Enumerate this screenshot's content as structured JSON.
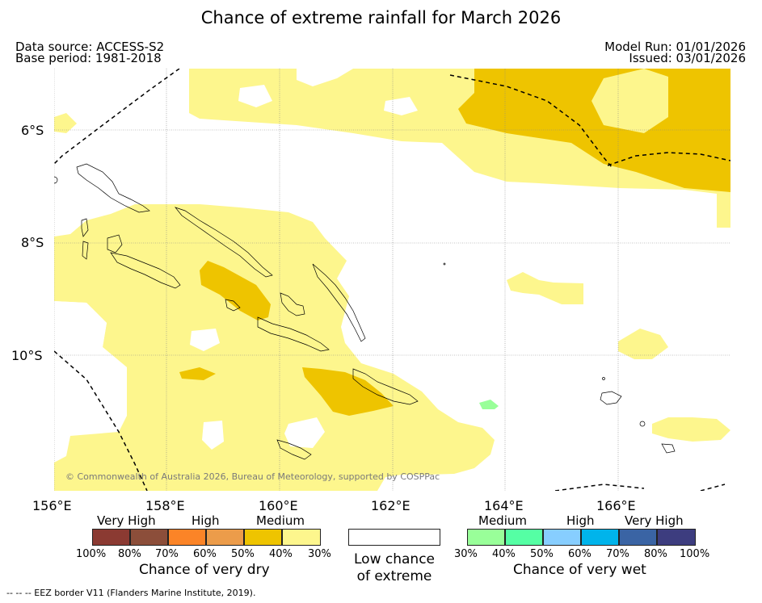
{
  "title": "Chance of extreme rainfall for March 2026",
  "header": {
    "data_source": "Data source: ACCESS-S2",
    "base_period": "Base period: 1981-2018",
    "model_run": "Model Run: 01/01/2026",
    "issued": "Issued: 03/01/2026"
  },
  "map": {
    "lat_labels": [
      "6°S",
      "8°S",
      "10°S"
    ],
    "lon_labels": [
      "156°E",
      "158°E",
      "160°E",
      "162°E",
      "164°E",
      "166°E"
    ],
    "copyright": "© Commonwealth of Australia 2026, Bureau of Meteorology, supported by COSPPac"
  },
  "legend": {
    "dry": {
      "categories": [
        "Very High",
        "High",
        "Medium"
      ],
      "colors": [
        "#8b3a32",
        "#8c4e3a",
        "#fb8427",
        "#ec9c4a",
        "#eec400",
        "#fdf68d"
      ],
      "ticks": [
        "100%",
        "80%",
        "70%",
        "60%",
        "50%",
        "40%",
        "30%"
      ],
      "caption": "Chance of very dry"
    },
    "low": {
      "caption_line1": "Low chance",
      "caption_line2": "of extreme",
      "color": "#ffffff"
    },
    "wet": {
      "categories": [
        "Medium",
        "High",
        "Very High"
      ],
      "colors": [
        "#99ff99",
        "#55ffa4",
        "#87ceff",
        "#00b4eb",
        "#3a64a4",
        "#3d3d7f"
      ],
      "ticks": [
        "30%",
        "40%",
        "50%",
        "60%",
        "70%",
        "80%",
        "100%"
      ],
      "caption": "Chance of very wet"
    }
  },
  "footer": "--  --  -- EEZ border V11 (Flanders Marine Institute, 2019)."
}
